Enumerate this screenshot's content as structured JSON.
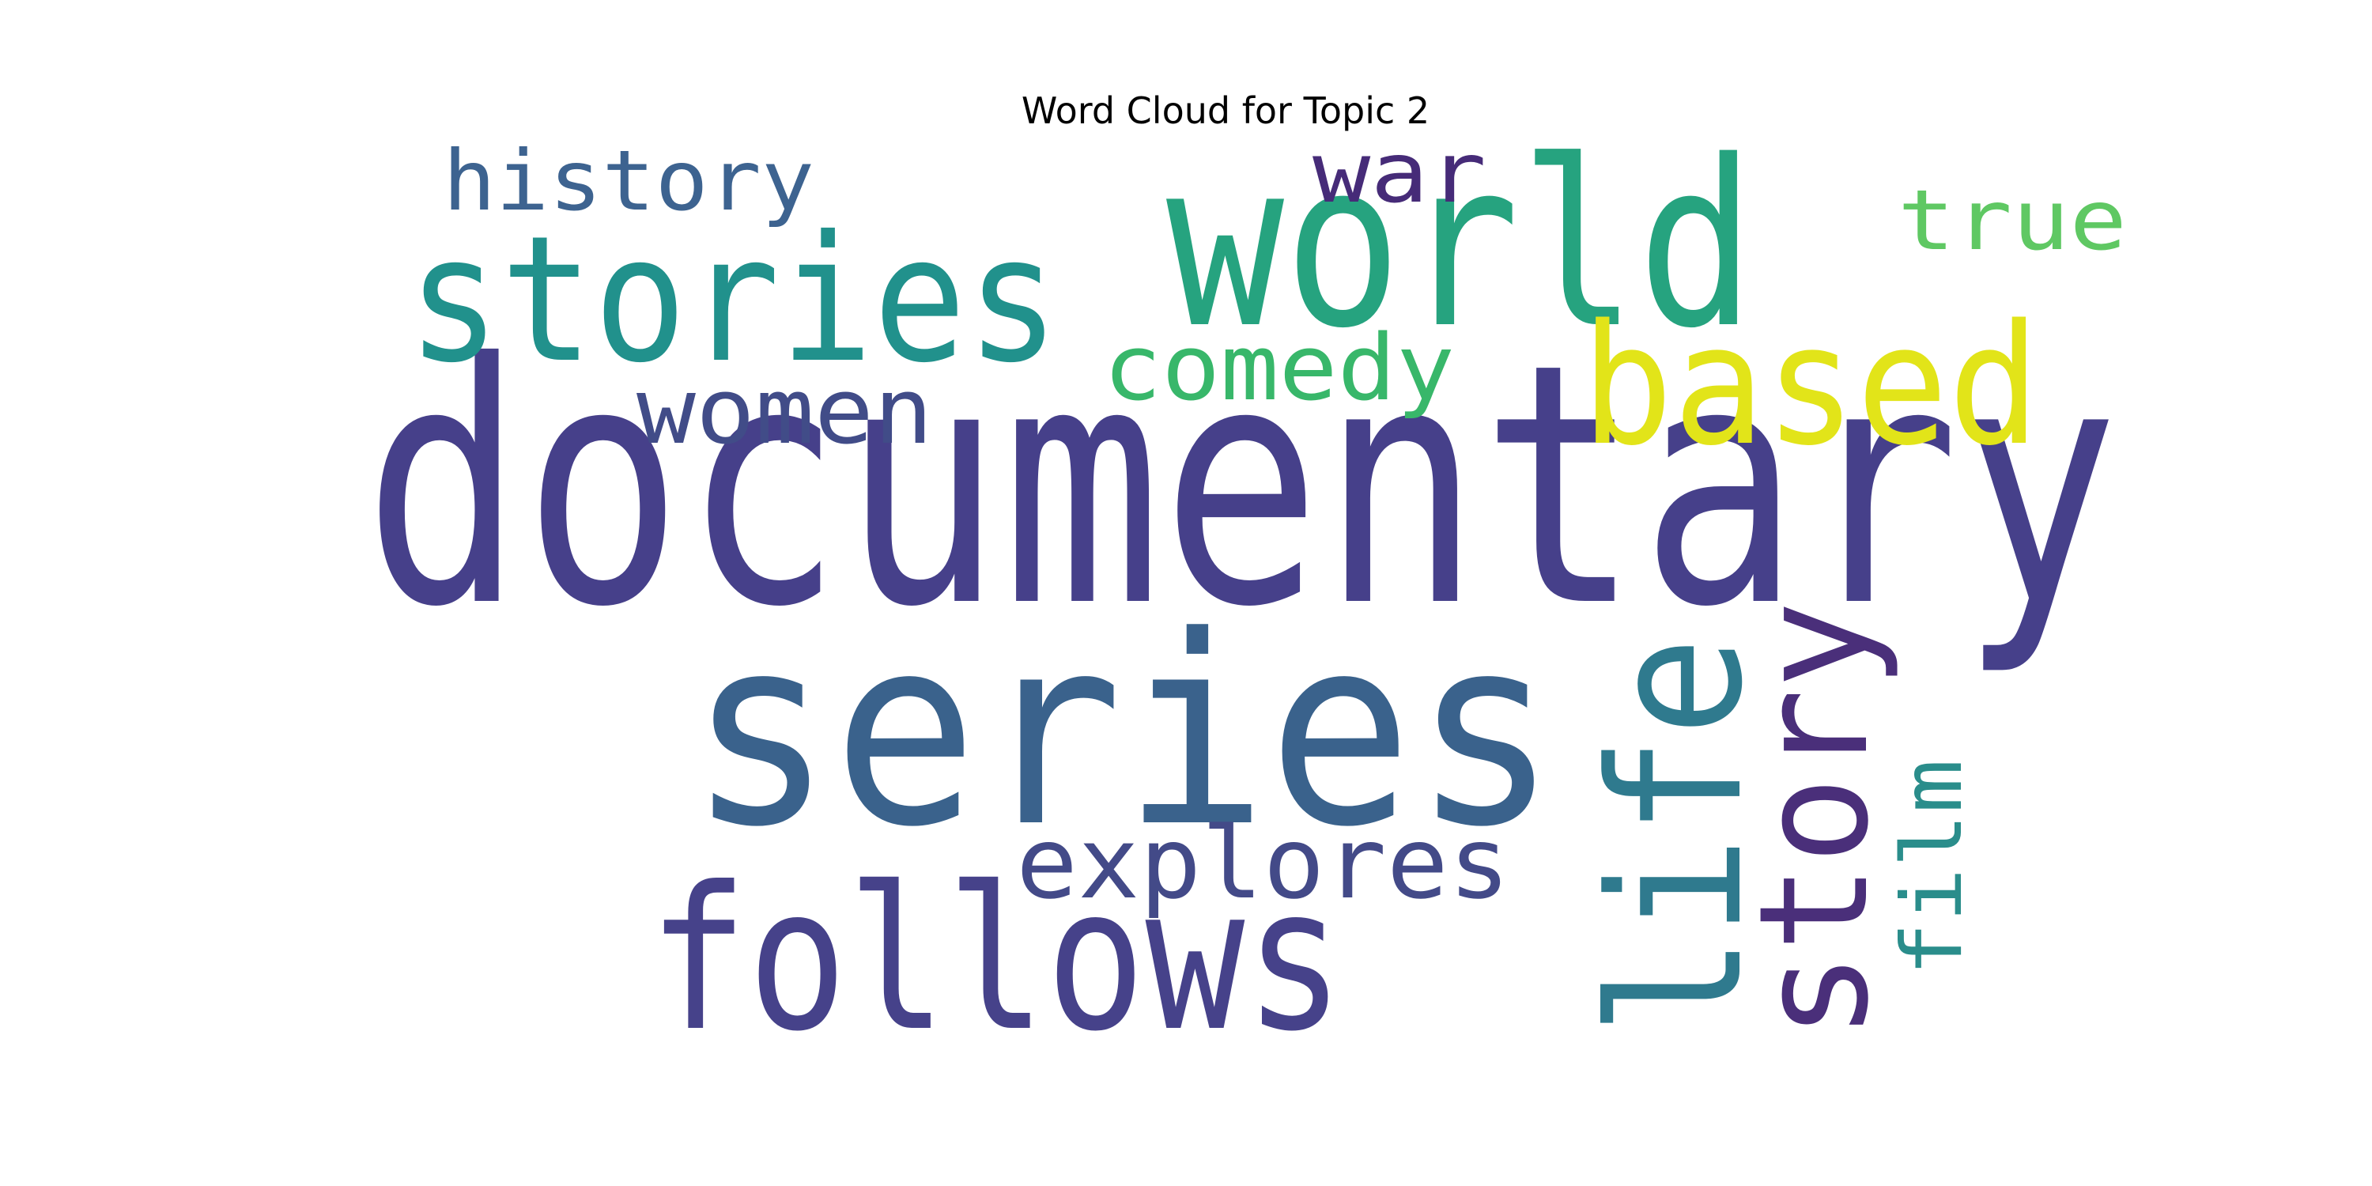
{
  "chart_data": {
    "type": "wordcloud",
    "title": "Word Cloud for Topic 2",
    "words": [
      {
        "text": "documentary",
        "color": "#46408a",
        "orientation": "horizontal"
      },
      {
        "text": "series",
        "color": "#3a628c",
        "orientation": "horizontal"
      },
      {
        "text": "world",
        "color": "#26a37f",
        "orientation": "horizontal"
      },
      {
        "text": "follows",
        "color": "#46428a",
        "orientation": "horizontal"
      },
      {
        "text": "stories",
        "color": "#21918c",
        "orientation": "horizontal"
      },
      {
        "text": "based",
        "color": "#e2e419",
        "orientation": "horizontal"
      },
      {
        "text": "life",
        "color": "#2f7a8e",
        "orientation": "vertical"
      },
      {
        "text": "story",
        "color": "#4a2f7a",
        "orientation": "vertical"
      },
      {
        "text": "explores",
        "color": "#434a88",
        "orientation": "horizontal"
      },
      {
        "text": "comedy",
        "color": "#38b76a",
        "orientation": "horizontal"
      },
      {
        "text": "women",
        "color": "#414c88",
        "orientation": "horizontal"
      },
      {
        "text": "history",
        "color": "#3d6390",
        "orientation": "horizontal"
      },
      {
        "text": "true",
        "color": "#5fc863",
        "orientation": "horizontal"
      },
      {
        "text": "war",
        "color": "#462b78",
        "orientation": "horizontal"
      },
      {
        "text": "film",
        "color": "#2a8d8b",
        "orientation": "vertical"
      }
    ]
  }
}
